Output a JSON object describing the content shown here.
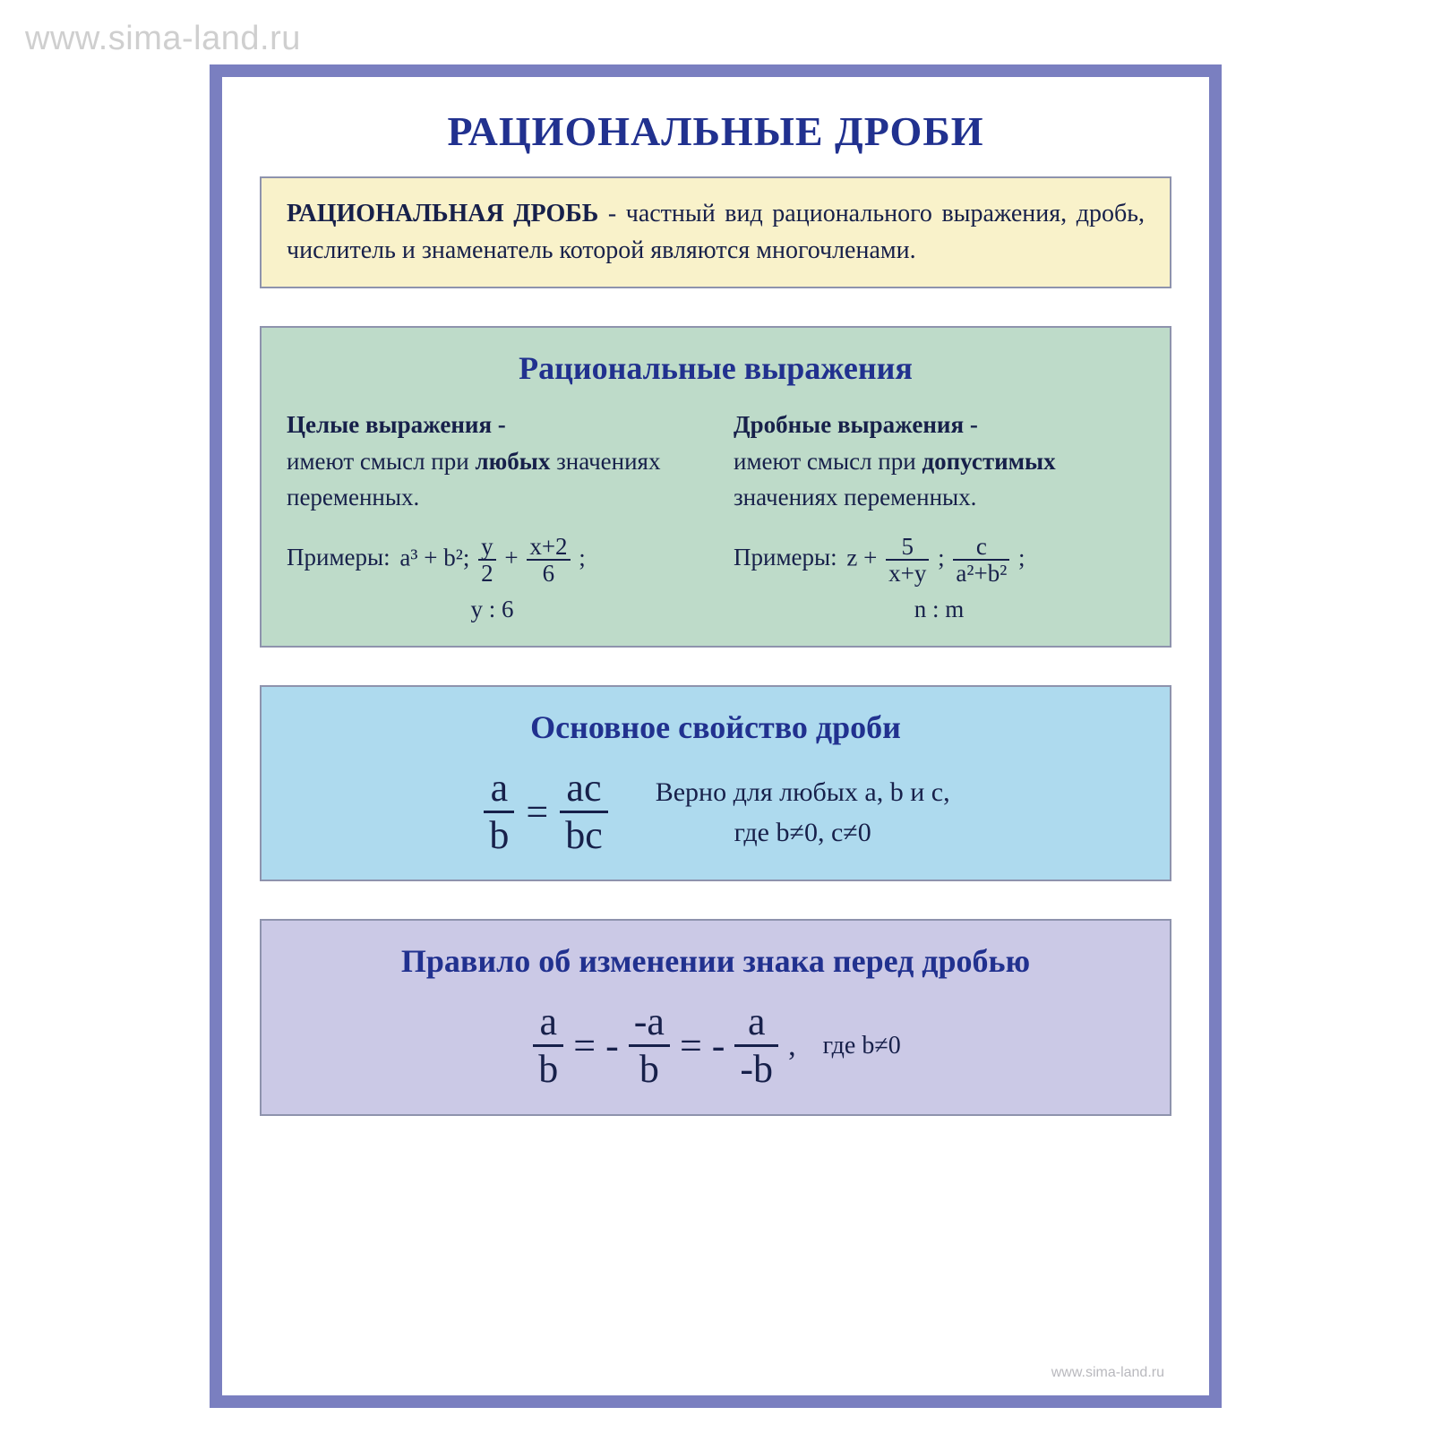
{
  "watermark": "www.sima-land.ru",
  "footer_url": "www.sima-land.ru",
  "colors": {
    "border": "#7a7fc0",
    "title": "#21318f",
    "text": "#17204a",
    "box_border": "#8e93ad",
    "def_bg": "#f9f2ca",
    "green_bg": "#bedbc9",
    "blue_bg": "#aedaee",
    "purple_bg": "#cbc9e6"
  },
  "title": "РАЦИОНАЛЬНЫЕ ДРОБИ",
  "definition": {
    "term": "РАЦИОНАЛЬНАЯ ДРОБЬ",
    "text": " - частный вид рационального выражения, дробь, числитель и знаменатель которой являются многочленами."
  },
  "section2": {
    "title": "Рациональные выражения",
    "left": {
      "head": "Целые выражения -",
      "body_pre": "имеют смысл при ",
      "body_strong": "любых",
      "body_post": " значениях переменных.",
      "examples_label": "Примеры:",
      "ex_a": "a³ + b²;",
      "frac1_num": "y",
      "frac1_den": "2",
      "plus": "+",
      "frac2_num": "x+2",
      "frac2_den": "6",
      "semic": ";",
      "line2": "y : 6"
    },
    "right": {
      "head": "Дробные выражения  -",
      "body_pre": "имеют смысл при ",
      "body_strong": "допустимых",
      "body_post": " значениях переменных.",
      "examples_label": "Примеры:",
      "ex_a": "z +",
      "frac1_num": "5",
      "frac1_den": "x+y",
      "semic1": ";",
      "frac2_num": "c",
      "frac2_den": "a²+b²",
      "semic2": ";",
      "line2": "n : m"
    }
  },
  "section3": {
    "title": "Основное свойство дроби",
    "f1_num": "a",
    "f1_den": "b",
    "eq": "=",
    "f2_num": "ac",
    "f2_den": "bc",
    "note_l1": "Верно для любых a, b и c,",
    "note_l2": "где b≠0, c≠0"
  },
  "section4": {
    "title": "Правило об изменении знака перед дробью",
    "f1_num": "a",
    "f1_den": "b",
    "eq1": "= -",
    "f2_num": "-a",
    "f2_den": "b",
    "eq2": "= -",
    "f3_num": "a",
    "f3_den": "-b",
    "comma": ",",
    "note": "где b≠0"
  }
}
